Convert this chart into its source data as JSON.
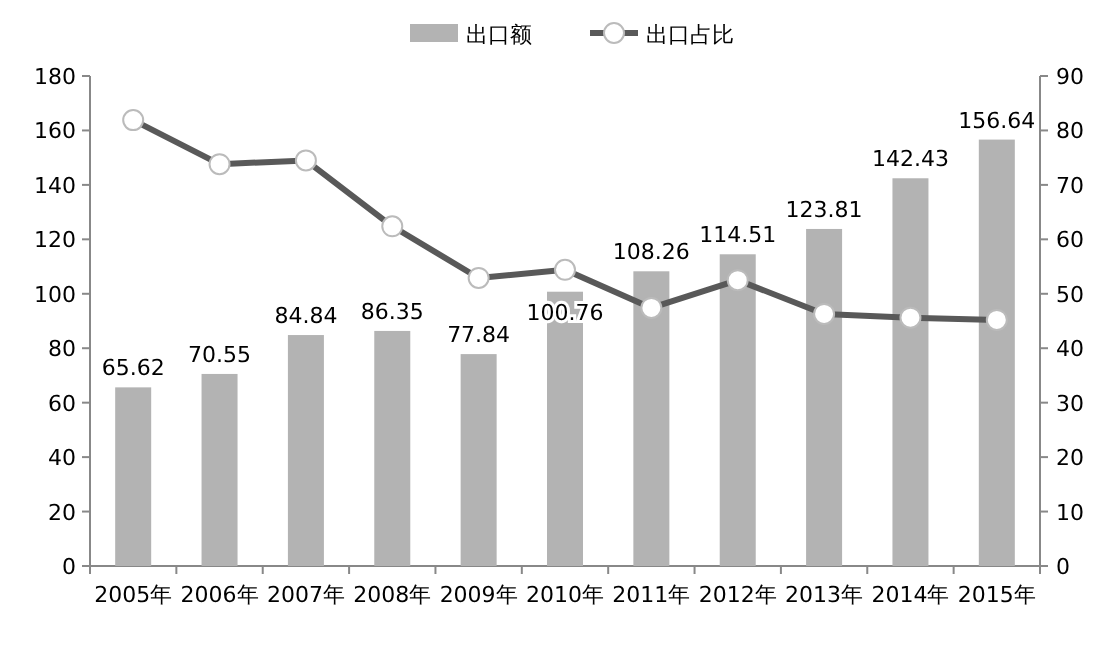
{
  "chart_data": {
    "type": "bar",
    "categories": [
      "2005年",
      "2006年",
      "2007年",
      "2008年",
      "2009年",
      "2010年",
      "2011年",
      "2012年",
      "2013年",
      "2014年",
      "2015年"
    ],
    "series": [
      {
        "name": "出口额",
        "color": "#b3b3b3",
        "values": [
          65.62,
          70.55,
          84.84,
          86.35,
          77.84,
          100.76,
          108.26,
          114.51,
          123.81,
          142.43,
          156.64
        ],
        "value_labels": [
          "65.62",
          "70.55",
          "84.84",
          "86.35",
          "77.84",
          "100.76",
          "108.26",
          "114.51",
          "123.81",
          "142.43",
          "156.64"
        ]
      },
      {
        "name": "出口占比",
        "type": "line",
        "axis": "y2",
        "color": "#595959",
        "marker": "circle",
        "values": [
          81.9,
          73.8,
          74.5,
          62.4,
          52.9,
          54.4,
          47.4,
          52.5,
          46.3,
          45.6,
          45.2
        ]
      }
    ],
    "ylim": [
      0,
      180
    ],
    "yticks": [
      0,
      20,
      40,
      60,
      80,
      100,
      120,
      140,
      160,
      180
    ],
    "y2lim": [
      0,
      90
    ],
    "y2ticks": [
      0,
      10,
      20,
      30,
      40,
      50,
      60,
      70,
      80,
      90
    ],
    "legend": "top",
    "grid": false
  }
}
